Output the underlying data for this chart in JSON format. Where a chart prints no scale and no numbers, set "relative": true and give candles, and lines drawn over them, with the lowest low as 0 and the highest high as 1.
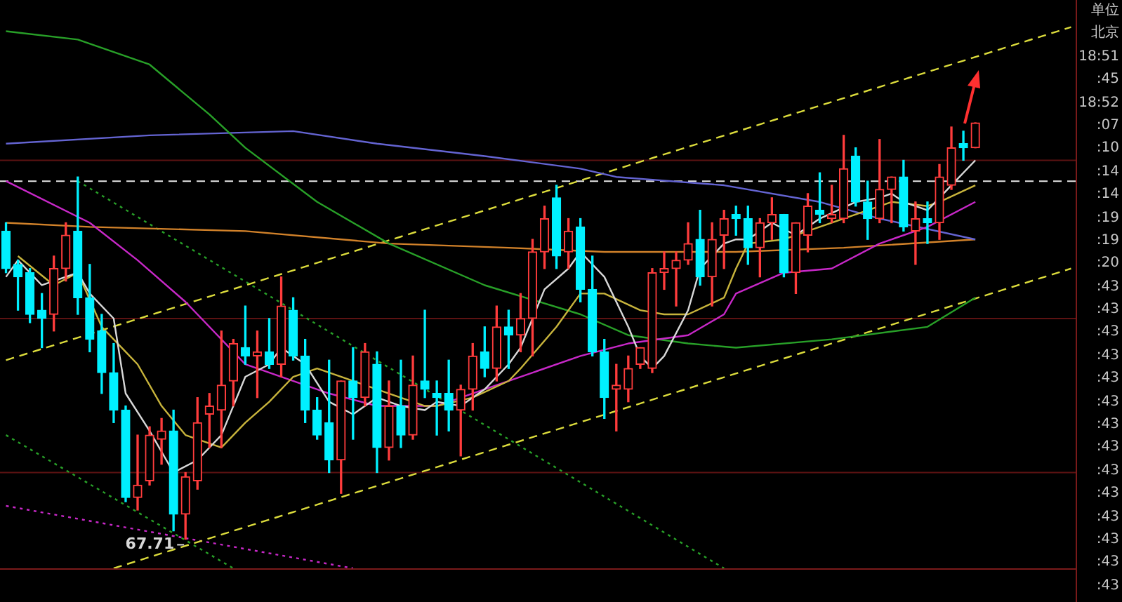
{
  "chart_data": {
    "type": "candlestick",
    "relative": true,
    "marker": "none",
    "categories": [
      null,
      null,
      null,
      null,
      null,
      null,
      null,
      null,
      null,
      null,
      null,
      null,
      null,
      null,
      null,
      null,
      null,
      null,
      null,
      null,
      null,
      null,
      null,
      null,
      null,
      null,
      null,
      null,
      null,
      null,
      null,
      null,
      null,
      null,
      null,
      null,
      null,
      null,
      null,
      null,
      null,
      null,
      null,
      null,
      null,
      null,
      null,
      null,
      null,
      null,
      null,
      null,
      null,
      null,
      null,
      null,
      null,
      null,
      null,
      null,
      null,
      null,
      null,
      null,
      null,
      null,
      null,
      null,
      null,
      null,
      null,
      null,
      null,
      null,
      null,
      null,
      null,
      null,
      null,
      null,
      null,
      null,
      null,
      null,
      null,
      null,
      null,
      null,
      null,
      null
    ],
    "ohlc": [
      [
        0.74,
        0.76,
        0.64,
        0.65
      ],
      [
        0.66,
        0.67,
        0.55,
        0.63
      ],
      [
        0.64,
        0.65,
        0.52,
        0.54
      ],
      [
        0.55,
        0.59,
        0.46,
        0.53
      ],
      [
        0.54,
        0.68,
        0.5,
        0.65
      ],
      [
        0.65,
        0.76,
        0.62,
        0.73
      ],
      [
        0.74,
        0.87,
        0.54,
        0.58
      ],
      [
        0.58,
        0.66,
        0.45,
        0.48
      ],
      [
        0.5,
        0.54,
        0.35,
        0.4
      ],
      [
        0.4,
        0.47,
        0.28,
        0.31
      ],
      [
        0.31,
        0.32,
        0.09,
        0.1
      ],
      [
        0.1,
        0.25,
        0.07,
        0.13
      ],
      [
        0.14,
        0.27,
        0.13,
        0.25
      ],
      [
        0.24,
        0.29,
        0.18,
        0.26
      ],
      [
        0.26,
        0.31,
        0.02,
        0.06
      ],
      [
        0.06,
        0.16,
        0,
        0.15
      ],
      [
        0.14,
        0.34,
        0.12,
        0.28
      ],
      [
        0.3,
        0.35,
        0.22,
        0.32
      ],
      [
        0.31,
        0.5,
        0.22,
        0.37
      ],
      [
        0.38,
        0.48,
        0.32,
        0.47
      ],
      [
        0.46,
        0.56,
        0.42,
        0.44
      ],
      [
        0.44,
        0.5,
        0.34,
        0.45
      ],
      [
        0.45,
        0.53,
        0.41,
        0.42
      ],
      [
        0.42,
        0.63,
        0.39,
        0.56
      ],
      [
        0.55,
        0.58,
        0.43,
        0.44
      ],
      [
        0.44,
        0.48,
        0.28,
        0.31
      ],
      [
        0.31,
        0.34,
        0.24,
        0.25
      ],
      [
        0.28,
        0.43,
        0.16,
        0.19
      ],
      [
        0.19,
        0.38,
        0.11,
        0.38
      ],
      [
        0.38,
        0.46,
        0.24,
        0.34
      ],
      [
        0.34,
        0.47,
        0.32,
        0.45
      ],
      [
        0.42,
        0.45,
        0.16,
        0.22
      ],
      [
        0.22,
        0.38,
        0.19,
        0.32
      ],
      [
        0.32,
        0.43,
        0.22,
        0.25
      ],
      [
        0.25,
        0.44,
        0.24,
        0.37
      ],
      [
        0.38,
        0.55,
        0.34,
        0.36
      ],
      [
        0.35,
        0.38,
        0.25,
        0.34
      ],
      [
        0.35,
        0.43,
        0.26,
        0.31
      ],
      [
        0.31,
        0.37,
        0.2,
        0.36
      ],
      [
        0.36,
        0.47,
        0.31,
        0.44
      ],
      [
        0.45,
        0.51,
        0.39,
        0.41
      ],
      [
        0.41,
        0.56,
        0.38,
        0.51
      ],
      [
        0.51,
        0.55,
        0.41,
        0.49
      ],
      [
        0.49,
        0.59,
        0.45,
        0.53
      ],
      [
        0.53,
        0.72,
        0.44,
        0.69
      ],
      [
        0.69,
        0.8,
        0.65,
        0.77
      ],
      [
        0.82,
        0.85,
        0.65,
        0.68
      ],
      [
        0.69,
        0.77,
        0.65,
        0.74
      ],
      [
        0.75,
        0.77,
        0.57,
        0.6
      ],
      [
        0.6,
        0.68,
        0.44,
        0.45
      ],
      [
        0.45,
        0.48,
        0.29,
        0.34
      ],
      [
        0.36,
        0.42,
        0.26,
        0.37
      ],
      [
        0.36,
        0.44,
        0.33,
        0.41
      ],
      [
        0.42,
        0.46,
        0.41,
        0.46
      ],
      [
        0.41,
        0.65,
        0.4,
        0.64
      ],
      [
        0.64,
        0.69,
        0.6,
        0.65
      ],
      [
        0.65,
        0.69,
        0.56,
        0.67
      ],
      [
        0.67,
        0.76,
        0.66,
        0.71
      ],
      [
        0.72,
        0.79,
        0.61,
        0.63
      ],
      [
        0.63,
        0.76,
        0.56,
        0.72
      ],
      [
        0.73,
        0.79,
        0.65,
        0.77
      ],
      [
        0.78,
        0.8,
        0.73,
        0.77
      ],
      [
        0.77,
        0.8,
        0.66,
        0.7
      ],
      [
        0.7,
        0.77,
        0.63,
        0.76
      ],
      [
        0.76,
        0.82,
        0.72,
        0.78
      ],
      [
        0.78,
        0.78,
        0.63,
        0.64
      ],
      [
        0.64,
        0.76,
        0.59,
        0.76
      ],
      [
        0.73,
        0.83,
        0.69,
        0.8
      ],
      [
        0.79,
        0.88,
        0.76,
        0.78
      ],
      [
        0.77,
        0.85,
        0.76,
        0.78
      ],
      [
        0.77,
        0.97,
        0.76,
        0.89
      ],
      [
        0.92,
        0.94,
        0.8,
        0.81
      ],
      [
        0.81,
        0.86,
        0.72,
        0.77
      ],
      [
        0.77,
        0.96,
        0.76,
        0.84
      ],
      [
        0.84,
        0.87,
        0.76,
        0.87
      ],
      [
        0.87,
        0.91,
        0.74,
        0.75
      ],
      [
        0.74,
        0.81,
        0.66,
        0.77
      ],
      [
        0.77,
        0.81,
        0.71,
        0.76
      ],
      [
        0.76,
        0.9,
        0.72,
        0.87
      ],
      [
        0.85,
        0.99,
        0.84,
        0.94
      ],
      [
        0.95,
        0.98,
        0.91,
        0.94
      ],
      [
        0.94,
        1,
        0.94,
        1
      ],
      null,
      null,
      null,
      null,
      null,
      null,
      null,
      null
    ],
    "series": [
      {
        "type": "line",
        "color": "#d8d8d8",
        "values": [
          0.63,
          0.67,
          null,
          0.61,
          null,
          null,
          0.64,
          0.59,
          null,
          0.53,
          0.35,
          null,
          0.26,
          null,
          0.16,
          null,
          0.19,
          null,
          0.25,
          null,
          0.39,
          null,
          0.42,
          0.46,
          null,
          0.42,
          null,
          0.33,
          null,
          0.3,
          null,
          0.34,
          null,
          0.32,
          null,
          0.31,
          0.33,
          null,
          0.32,
          null,
          0.36,
          null,
          0.42,
          0.46,
          null,
          0.6,
          null,
          0.65,
          0.69,
          null,
          0.63,
          null,
          0.51,
          0.44,
          0.41,
          0.44,
          null,
          0.55,
          0.65,
          null,
          0.71,
          0.72,
          0.72,
          null,
          0.76,
          null,
          0.73,
          null,
          0.77,
          null,
          null,
          0.81,
          null,
          0.82,
          0.83,
          0.81,
          null,
          0.79,
          null,
          0.85,
          null,
          0.91,
          null,
          null,
          null,
          null,
          null,
          null,
          null,
          null
        ]
      },
      {
        "type": "line",
        "color": "#c8b43c",
        "values": [
          null,
          0.68,
          null,
          null,
          0.61,
          null,
          0.64,
          null,
          0.51,
          null,
          null,
          0.42,
          null,
          0.32,
          null,
          0.25,
          null,
          null,
          0.22,
          null,
          0.28,
          null,
          0.33,
          null,
          0.39,
          null,
          0.41,
          null,
          null,
          0.38,
          null,
          null,
          0.35,
          null,
          null,
          0.32,
          0.32,
          null,
          null,
          0.34,
          null,
          null,
          0.38,
          0.41,
          null,
          null,
          0.51,
          null,
          0.59,
          null,
          0.59,
          null,
          null,
          0.55,
          null,
          0.54,
          null,
          0.54,
          null,
          null,
          0.58,
          0.65,
          0.71,
          null,
          null,
          0.72,
          null,
          null,
          0.75,
          null,
          null,
          0.78,
          null,
          null,
          0.81,
          null,
          null,
          0.8,
          0.81,
          null,
          null,
          0.85,
          null,
          null,
          null,
          null,
          null,
          null,
          null,
          null
        ]
      },
      {
        "type": "line",
        "color": "#c828c8",
        "values": [
          0.86,
          null,
          null,
          null,
          null,
          null,
          null,
          0.76,
          null,
          null,
          null,
          0.67,
          null,
          null,
          null,
          0.57,
          null,
          null,
          null,
          null,
          0.42,
          null,
          null,
          null,
          null,
          null,
          null,
          0.35,
          null,
          null,
          null,
          0.32,
          null,
          null,
          null,
          null,
          0.32,
          null,
          null,
          null,
          null,
          0.37,
          null,
          null,
          null,
          null,
          null,
          null,
          0.44,
          null,
          null,
          null,
          0.47,
          null,
          null,
          null,
          null,
          0.49,
          null,
          null,
          0.54,
          0.59,
          null,
          null,
          null,
          0.64,
          null,
          null,
          null,
          0.65,
          null,
          null,
          null,
          0.71,
          null,
          null,
          null,
          0.75,
          null,
          null,
          null,
          0.81,
          null,
          null,
          null,
          null,
          null,
          null,
          null,
          null
        ]
      },
      {
        "type": "line",
        "color": "#28a028",
        "values": [
          1.22,
          null,
          null,
          null,
          null,
          null,
          1.2,
          null,
          null,
          null,
          null,
          null,
          1.14,
          null,
          null,
          null,
          null,
          1.02,
          null,
          null,
          0.94,
          null,
          null,
          null,
          null,
          null,
          0.81,
          null,
          null,
          null,
          null,
          null,
          0.71,
          null,
          null,
          null,
          null,
          null,
          null,
          null,
          0.61,
          null,
          null,
          null,
          null,
          null,
          null,
          null,
          0.54,
          null,
          null,
          null,
          0.49,
          null,
          null,
          null,
          null,
          0.47,
          null,
          null,
          null,
          0.46,
          null,
          null,
          null,
          null,
          null,
          null,
          null,
          0.48,
          null,
          null,
          null,
          null,
          null,
          null,
          null,
          0.51,
          null,
          null,
          null,
          0.58,
          null,
          null,
          null,
          null,
          null,
          null,
          null,
          null
        ]
      },
      {
        "type": "line",
        "color": "#6464d2",
        "values": [
          0.95,
          null,
          null,
          null,
          null,
          null,
          null,
          null,
          null,
          null,
          null,
          null,
          0.97,
          null,
          null,
          null,
          null,
          null,
          null,
          null,
          null,
          null,
          null,
          null,
          0.98,
          null,
          null,
          null,
          null,
          null,
          null,
          0.95,
          null,
          null,
          null,
          null,
          null,
          null,
          null,
          null,
          0.92,
          null,
          null,
          null,
          null,
          null,
          null,
          null,
          0.89,
          null,
          null,
          0.87,
          null,
          null,
          null,
          null,
          null,
          null,
          null,
          null,
          0.85,
          null,
          null,
          null,
          null,
          null,
          null,
          null,
          0.81,
          null,
          null,
          null,
          null,
          0.77,
          null,
          null,
          null,
          null,
          null,
          null,
          null,
          0.72,
          null,
          null,
          null,
          null,
          null,
          null,
          null,
          null
        ]
      },
      {
        "type": "line",
        "color": "#d2822a",
        "values": [
          0.76,
          null,
          null,
          null,
          null,
          null,
          null,
          0.75,
          null,
          null,
          null,
          null,
          null,
          null,
          null,
          null,
          null,
          null,
          null,
          null,
          0.74,
          null,
          null,
          null,
          null,
          null,
          null,
          null,
          null,
          null,
          null,
          null,
          0.71,
          null,
          null,
          null,
          null,
          null,
          null,
          null,
          null,
          null,
          0.7,
          null,
          null,
          null,
          null,
          null,
          null,
          null,
          0.69,
          null,
          null,
          null,
          null,
          null,
          null,
          null,
          null,
          null,
          null,
          0.69,
          null,
          null,
          null,
          null,
          null,
          null,
          null,
          null,
          0.7,
          null,
          null,
          null,
          null,
          null,
          null,
          null,
          null,
          null,
          null,
          0.72,
          null,
          null,
          null,
          null,
          null,
          null,
          null,
          null
        ]
      },
      {
        "type": "line",
        "color": "#dcdc3c",
        "line_style": "dashed",
        "values": [
          0.43,
          null,
          null,
          null,
          null,
          null,
          null,
          null,
          null,
          null,
          null,
          null,
          null,
          null,
          null,
          null,
          null,
          null,
          null,
          null,
          null,
          null,
          null,
          null,
          null,
          null,
          null,
          null,
          null,
          null,
          null,
          null,
          null,
          null,
          null,
          null,
          null,
          null,
          null,
          null,
          null,
          null,
          null,
          null,
          null,
          null,
          null,
          null,
          null,
          null,
          null,
          null,
          null,
          null,
          null,
          null,
          null,
          null,
          null,
          null,
          null,
          null,
          null,
          null,
          null,
          null,
          null,
          null,
          null,
          null,
          null,
          null,
          null,
          null,
          null,
          null,
          null,
          null,
          null,
          null,
          null,
          null,
          null,
          null,
          null,
          null,
          null,
          null,
          null,
          1.23
        ]
      },
      {
        "type": "line",
        "color": "#dcdc3c",
        "line_style": "dashed",
        "values": [
          null,
          null,
          null,
          null,
          null,
          null,
          null,
          null,
          null,
          -0.07,
          null,
          null,
          null,
          null,
          null,
          null,
          null,
          null,
          null,
          null,
          null,
          null,
          null,
          null,
          null,
          null,
          null,
          null,
          null,
          null,
          null,
          null,
          null,
          null,
          null,
          null,
          null,
          null,
          null,
          null,
          null,
          null,
          null,
          null,
          null,
          null,
          null,
          null,
          null,
          null,
          null,
          null,
          null,
          null,
          null,
          null,
          null,
          null,
          null,
          null,
          null,
          null,
          null,
          null,
          null,
          null,
          null,
          null,
          null,
          null,
          null,
          null,
          null,
          null,
          null,
          null,
          null,
          null,
          null,
          null,
          null,
          null,
          null,
          null,
          null,
          null,
          null,
          null,
          null,
          0.65
        ]
      },
      {
        "type": "line",
        "color": "#28a028",
        "line_style": "dotted",
        "values": [
          null,
          null,
          null,
          null,
          null,
          null,
          0.86,
          null,
          null,
          null,
          null,
          null,
          null,
          null,
          null,
          null,
          null,
          null,
          null,
          null,
          null,
          null,
          null,
          null,
          null,
          null,
          null,
          null,
          null,
          null,
          null,
          null,
          null,
          null,
          null,
          null,
          null,
          null,
          null,
          null,
          null,
          null,
          null,
          null,
          null,
          null,
          null,
          null,
          null,
          null,
          null,
          null,
          null,
          null,
          null,
          null,
          null,
          null,
          null,
          null,
          -0.07,
          null,
          null,
          null,
          null,
          null,
          null,
          null,
          null,
          null,
          null,
          null,
          null,
          null,
          null,
          null,
          null,
          null,
          null,
          null,
          null,
          null,
          null,
          null,
          null,
          null,
          null,
          null,
          null,
          null
        ]
      },
      {
        "type": "line",
        "color": "#28a028",
        "line_style": "dotted",
        "values": [
          0.25,
          null,
          null,
          null,
          null,
          null,
          null,
          null,
          null,
          null,
          null,
          null,
          null,
          null,
          null,
          null,
          null,
          null,
          null,
          -0.07,
          null,
          null,
          null,
          null,
          null,
          null,
          null,
          null,
          null,
          null,
          null,
          null,
          null,
          null,
          null,
          null,
          null,
          null,
          null,
          null,
          null,
          null,
          null,
          null,
          null,
          null,
          null,
          null,
          null,
          null,
          null,
          null,
          null,
          null,
          null,
          null,
          null,
          null,
          null,
          null,
          null,
          null,
          null,
          null,
          null,
          null,
          null,
          null,
          null,
          null,
          null,
          null,
          null,
          null,
          null,
          null,
          null,
          null,
          null,
          null,
          null,
          null,
          null,
          null,
          null,
          null,
          null,
          null,
          null,
          null
        ]
      },
      {
        "type": "line",
        "color": "#c828c8",
        "line_style": "dotted",
        "values": [
          0.08,
          null,
          null,
          null,
          null,
          null,
          null,
          null,
          null,
          null,
          null,
          null,
          null,
          null,
          null,
          null,
          null,
          null,
          null,
          null,
          null,
          null,
          null,
          null,
          null,
          null,
          null,
          null,
          null,
          -0.07,
          null,
          null,
          null,
          null,
          null,
          null,
          null,
          null,
          null,
          null,
          null,
          null,
          null,
          null,
          null,
          null,
          null,
          null,
          null,
          null,
          null,
          null,
          null,
          null,
          null,
          null,
          null,
          null,
          null,
          null,
          null,
          null,
          null,
          null,
          null,
          null,
          null,
          null,
          null,
          null,
          null,
          null,
          null,
          null,
          null,
          null,
          null,
          null,
          null,
          null,
          null,
          null,
          null,
          null,
          null,
          null,
          null,
          null,
          null,
          null
        ]
      }
    ],
    "ref_lines": [
      {
        "axis": "y",
        "value": 0.86,
        "color": "#e6e6e6",
        "line_style": "dashed"
      },
      {
        "axis": "y",
        "value": 0.91,
        "color": "#5c1212"
      },
      {
        "axis": "y",
        "value": 0.53,
        "color": "#5c1212"
      },
      {
        "axis": "y",
        "value": 0.16,
        "color": "#5c1212"
      }
    ],
    "annotations": [
      "67.71",
      "单位",
      "北京",
      "18:51",
      ":45",
      "18:52",
      ":07",
      ":10",
      ":14",
      ":14",
      ":19",
      ":19",
      ":20",
      ":43",
      ":43",
      ":43",
      ":43",
      ":43",
      ":43",
      ":43",
      ":43",
      ":43",
      ":43",
      ":43",
      ":43",
      ":43",
      ":43"
    ]
  }
}
